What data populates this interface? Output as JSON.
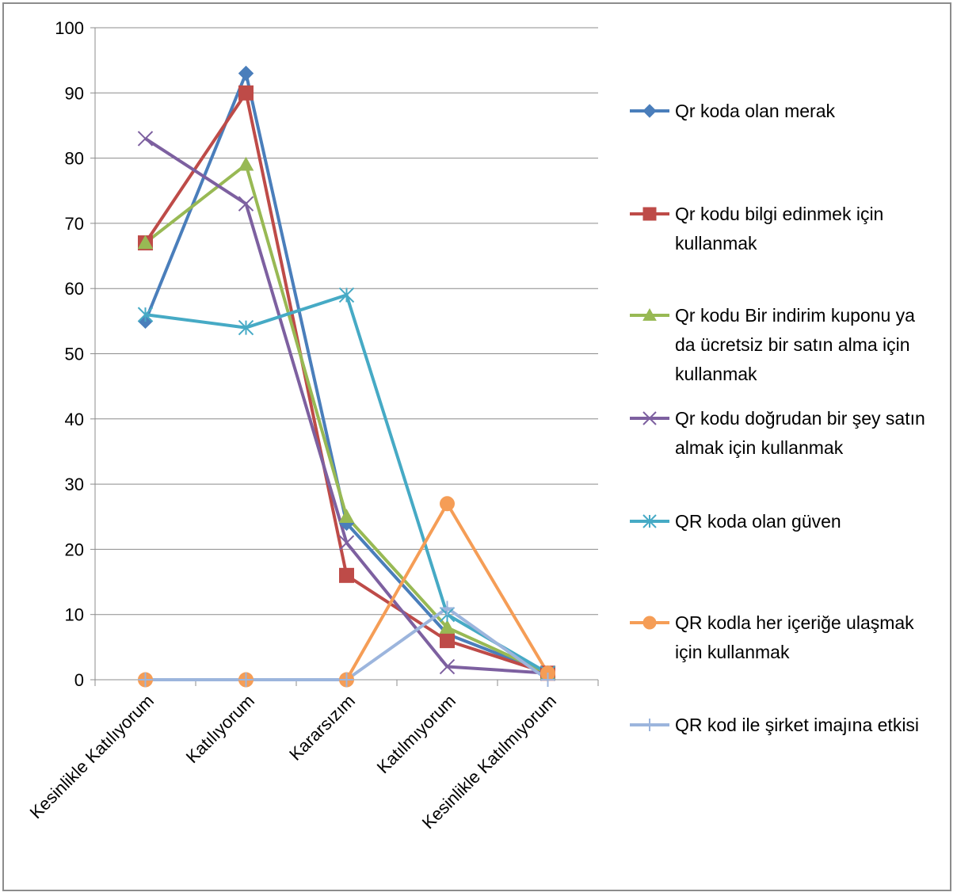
{
  "chart_data": {
    "type": "line",
    "categories": [
      "Kesinlikle Katılıyorum",
      "Katılıyorum",
      "Kararsızım",
      "Katılmıyorum",
      "Kesinlikle Katılmıyorum"
    ],
    "ylim": [
      0,
      100
    ],
    "yticks": [
      0,
      10,
      20,
      30,
      40,
      50,
      60,
      70,
      80,
      90,
      100
    ],
    "grid": true,
    "legend_position": "right",
    "series": [
      {
        "name": "Qr koda olan merak",
        "legend_lines": [
          "Qr koda olan merak"
        ],
        "values": [
          55,
          93,
          24,
          7,
          1
        ],
        "color": "#4a7ebb",
        "marker": "diamond"
      },
      {
        "name": "Qr kodu bilgi edinmek için kullanmak",
        "legend_lines": [
          "Qr kodu bilgi edinmek için",
          "kullanmak"
        ],
        "values": [
          67,
          90,
          16,
          6,
          1
        ],
        "color": "#be4b48",
        "marker": "square"
      },
      {
        "name": "Qr kodu Bir indirim kuponu ya da ücretsiz bir satın alma için kullanmak",
        "legend_lines": [
          "Qr kodu Bir indirim kuponu ya",
          "da ücretsiz bir satın alma için",
          "kullanmak"
        ],
        "values": [
          67,
          79,
          25,
          8,
          1
        ],
        "color": "#98b954",
        "marker": "triangle"
      },
      {
        "name": " Qr kodu doğrudan bir şey satın almak için kullanmak",
        "legend_lines": [
          " Qr kodu doğrudan bir şey satın",
          "almak için kullanmak"
        ],
        "values": [
          83,
          73,
          21,
          2,
          1
        ],
        "color": "#7d60a0",
        "marker": "x"
      },
      {
        "name": "QR koda olan güven",
        "legend_lines": [
          "QR koda olan güven"
        ],
        "values": [
          56,
          54,
          59,
          10,
          1
        ],
        "color": "#46aac5",
        "marker": "asterisk"
      },
      {
        "name": "QR kodla her içeriğe ulaşmak için kullanmak",
        "legend_lines": [
          "QR kodla her içeriğe ulaşmak",
          "için kullanmak"
        ],
        "values": [
          0,
          0,
          0,
          27,
          1
        ],
        "color": "#f59d56",
        "marker": "circle"
      },
      {
        "name": "QR kod ile şirket imajına etkisi",
        "legend_lines": [
          "QR kod ile şirket imajına etkisi"
        ],
        "values": [
          0,
          0,
          0,
          11,
          0
        ],
        "color": "#9cb5dd",
        "marker": "plus"
      }
    ]
  }
}
